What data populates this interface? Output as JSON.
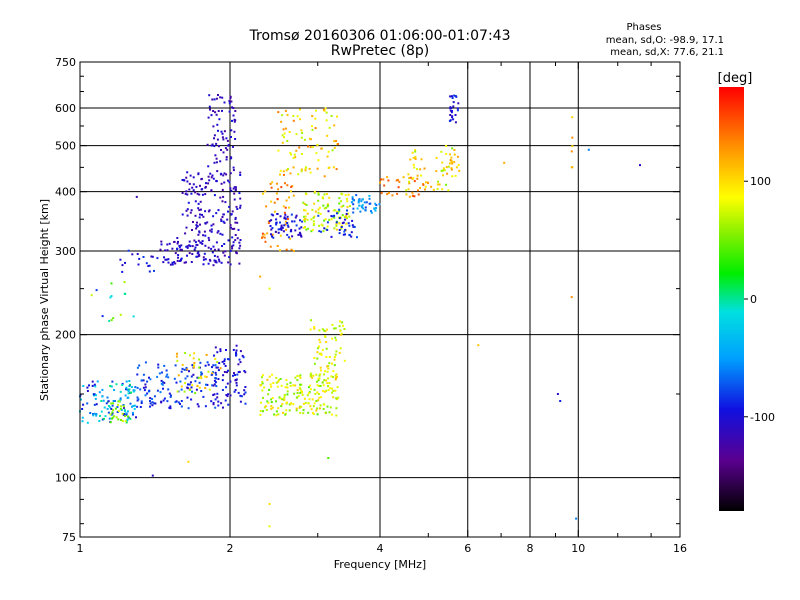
{
  "chart_data": {
    "type": "scatter",
    "title": "Tromsø 20160306 01:06:00-01:07:43",
    "subtitle": "RwPretec (8p)",
    "xlabel": "Frequency [MHz]",
    "ylabel": "Stationary phase Virtual Height [km]",
    "x_scale": "log",
    "y_scale": "log",
    "xlim": [
      1,
      16
    ],
    "ylim": [
      75,
      750
    ],
    "x_ticks": [
      1,
      2,
      4,
      6,
      8,
      10,
      16
    ],
    "x_tick_labels": [
      "1",
      "2",
      "4",
      "6",
      "8",
      "10",
      "16"
    ],
    "x_gridlines": [
      2,
      4,
      6,
      8,
      10
    ],
    "y_ticks": [
      75,
      100,
      200,
      300,
      400,
      500,
      600,
      750
    ],
    "y_tick_labels": [
      "75",
      "100",
      "200",
      "300",
      "400",
      "500",
      "600",
      "750"
    ],
    "y_gridlines": [
      100,
      200,
      300,
      400,
      500,
      600
    ],
    "grid": true,
    "colorbar": {
      "unit": "[deg]",
      "range": [
        -180,
        180
      ],
      "ticks": [
        100,
        0,
        -100
      ],
      "tick_labels": [
        "100",
        "0",
        "-100"
      ],
      "colormap": "rainbow"
    },
    "legend": {
      "heading": "Phases",
      "line1": "mean, sd,O:  -98.9, 17.1",
      "line2": "mean, sd,X:  77.6, 21.1"
    },
    "clusters": [
      {
        "f": [
          1.0,
          1.3
        ],
        "h": [
          130,
          160
        ],
        "phase": [
          -110,
          10
        ],
        "n": 120
      },
      {
        "f": [
          1.15,
          1.25
        ],
        "h": [
          130,
          145
        ],
        "phase": [
          40,
          80
        ],
        "n": 25
      },
      {
        "f": [
          1.3,
          1.9
        ],
        "h": [
          140,
          175
        ],
        "phase": [
          -110,
          -60
        ],
        "n": 140
      },
      {
        "f": [
          1.55,
          1.95
        ],
        "h": [
          150,
          185
        ],
        "phase": [
          50,
          130
        ],
        "n": 40
      },
      {
        "f": [
          1.85,
          2.15
        ],
        "h": [
          140,
          190
        ],
        "phase": [
          -120,
          -80
        ],
        "n": 80
      },
      {
        "f": [
          2.3,
          3.3
        ],
        "h": [
          135,
          165
        ],
        "phase": [
          40,
          110
        ],
        "n": 190
      },
      {
        "f": [
          2.9,
          3.4
        ],
        "h": [
          160,
          215
        ],
        "phase": [
          50,
          110
        ],
        "n": 70
      },
      {
        "f": [
          1.05,
          1.3
        ],
        "h": [
          200,
          260
        ],
        "phase": [
          -110,
          80
        ],
        "n": 14
      },
      {
        "f": [
          1.45,
          2.1
        ],
        "h": [
          280,
          320
        ],
        "phase": [
          -130,
          -90
        ],
        "n": 120
      },
      {
        "f": [
          1.6,
          2.1
        ],
        "h": [
          320,
          440
        ],
        "phase": [
          -130,
          -90
        ],
        "n": 150
      },
      {
        "f": [
          1.8,
          2.05
        ],
        "h": [
          430,
          640
        ],
        "phase": [
          -130,
          -90
        ],
        "n": 80
      },
      {
        "f": [
          1.2,
          1.45
        ],
        "h": [
          270,
          310
        ],
        "phase": [
          -110,
          -80
        ],
        "n": 18
      },
      {
        "f": [
          2.3,
          2.7
        ],
        "h": [
          300,
          420
        ],
        "phase": [
          100,
          160
        ],
        "n": 50
      },
      {
        "f": [
          2.4,
          2.8
        ],
        "h": [
          320,
          360
        ],
        "phase": [
          -120,
          -80
        ],
        "n": 60
      },
      {
        "f": [
          2.5,
          3.3
        ],
        "h": [
          430,
          600
        ],
        "phase": [
          60,
          140
        ],
        "n": 90
      },
      {
        "f": [
          2.8,
          3.5
        ],
        "h": [
          330,
          400
        ],
        "phase": [
          40,
          110
        ],
        "n": 100
      },
      {
        "f": [
          3.0,
          3.6
        ],
        "h": [
          320,
          370
        ],
        "phase": [
          -110,
          -70
        ],
        "n": 40
      },
      {
        "f": [
          3.5,
          4.0
        ],
        "h": [
          360,
          395
        ],
        "phase": [
          -80,
          -30
        ],
        "n": 40
      },
      {
        "f": [
          4.0,
          5.0
        ],
        "h": [
          390,
          430
        ],
        "phase": [
          110,
          160
        ],
        "n": 35
      },
      {
        "f": [
          4.5,
          5.7
        ],
        "h": [
          400,
          500
        ],
        "phase": [
          50,
          130
        ],
        "n": 50
      },
      {
        "f": [
          5.5,
          5.75
        ],
        "h": [
          550,
          640
        ],
        "phase": [
          -120,
          -80
        ],
        "n": 25
      },
      {
        "f": [
          5.5,
          5.8
        ],
        "h": [
          440,
          480
        ],
        "phase": [
          90,
          130
        ],
        "n": 15
      },
      {
        "f": [
          9.7,
          9.8
        ],
        "h": [
          450,
          650
        ],
        "phase": [
          90,
          130
        ],
        "n": 6
      }
    ],
    "outliers": [
      {
        "f": 6.3,
        "h": 190,
        "phase": 110
      },
      {
        "f": 7.1,
        "h": 460,
        "phase": 120
      },
      {
        "f": 9.1,
        "h": 150,
        "phase": -110
      },
      {
        "f": 9.2,
        "h": 145,
        "phase": -90
      },
      {
        "f": 9.9,
        "h": 82,
        "phase": -60
      },
      {
        "f": 10.5,
        "h": 490,
        "phase": -60
      },
      {
        "f": 13.3,
        "h": 455,
        "phase": -110
      },
      {
        "f": 9.7,
        "h": 240,
        "phase": 130
      },
      {
        "f": 1.4,
        "h": 101,
        "phase": -110
      },
      {
        "f": 1.65,
        "h": 108,
        "phase": 100
      },
      {
        "f": 2.4,
        "h": 88,
        "phase": 100
      },
      {
        "f": 2.4,
        "h": 79,
        "phase": 80
      },
      {
        "f": 3.15,
        "h": 110,
        "phase": 40
      },
      {
        "f": 1.3,
        "h": 390,
        "phase": -120
      },
      {
        "f": 2.3,
        "h": 265,
        "phase": 120
      },
      {
        "f": 2.4,
        "h": 250,
        "phase": 80
      }
    ]
  }
}
